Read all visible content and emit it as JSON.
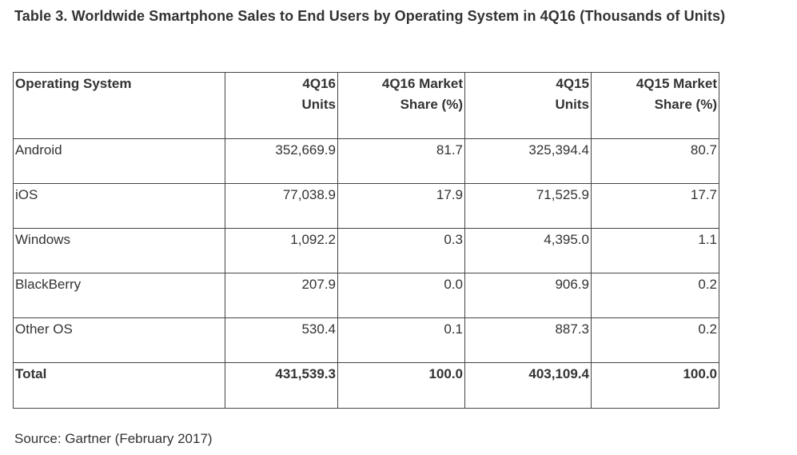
{
  "title": "Table 3. Worldwide Smartphone Sales to End Users by Operating System in 4Q16 (Thousands of Units)",
  "table": {
    "headers": {
      "os": "Operating System",
      "units_4q16_line1": "4Q16",
      "units_4q16_line2": "Units",
      "share_4q16_line1": "4Q16 Market",
      "share_4q16_line2": "Share (%)",
      "units_4q15_line1": "4Q15",
      "units_4q15_line2": "Units",
      "share_4q15_line1": "4Q15 Market",
      "share_4q15_line2": "Share (%)"
    },
    "rows": [
      {
        "os": "Android",
        "units_4q16": "352,669.9",
        "share_4q16": "81.7",
        "units_4q15": "325,394.4",
        "share_4q15": "80.7"
      },
      {
        "os": "iOS",
        "units_4q16": "77,038.9",
        "share_4q16": "17.9",
        "units_4q15": "71,525.9",
        "share_4q15": "17.7"
      },
      {
        "os": "Windows",
        "units_4q16": "1,092.2",
        "share_4q16": "0.3",
        "units_4q15": "4,395.0",
        "share_4q15": "1.1"
      },
      {
        "os": "BlackBerry",
        "units_4q16": "207.9",
        "share_4q16": "0.0",
        "units_4q15": "906.9",
        "share_4q15": "0.2"
      },
      {
        "os": "Other OS",
        "units_4q16": "530.4",
        "share_4q16": "0.1",
        "units_4q15": "887.3",
        "share_4q15": "0.2"
      }
    ],
    "total": {
      "os": "Total",
      "units_4q16": "431,539.3",
      "share_4q16": "100.0",
      "units_4q15": "403,109.4",
      "share_4q15": "100.0"
    }
  },
  "source": "Source: Gartner (February 2017)"
}
